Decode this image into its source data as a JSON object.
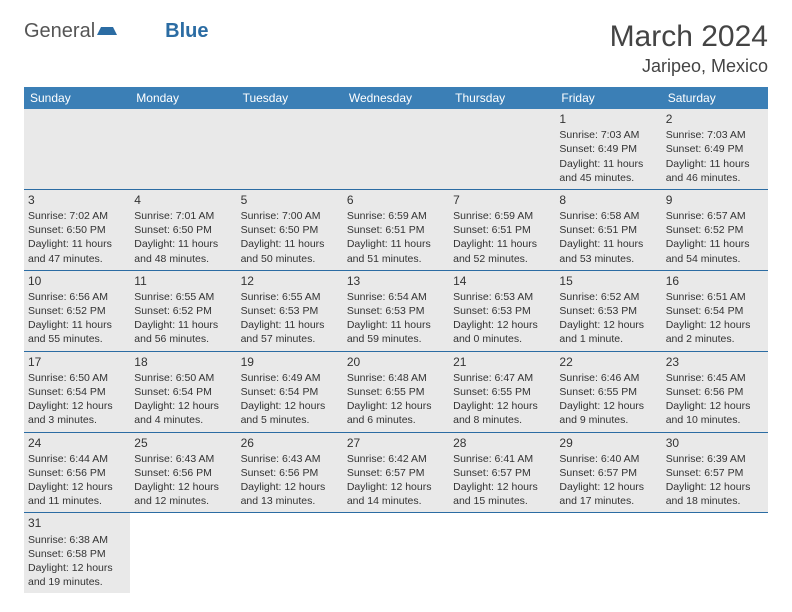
{
  "brand": {
    "part1": "General",
    "part2": "Blue"
  },
  "title": "March 2024",
  "location": "Jaripeo, Mexico",
  "colors": {
    "header_bg": "#3b7fb6",
    "header_text": "#ffffff",
    "cell_bg": "#e9e9e9",
    "rule": "#2b6ca3",
    "brand_blue": "#2b6ca3"
  },
  "weekdays": [
    "Sunday",
    "Monday",
    "Tuesday",
    "Wednesday",
    "Thursday",
    "Friday",
    "Saturday"
  ],
  "weeks": [
    [
      null,
      null,
      null,
      null,
      null,
      {
        "d": "1",
        "sr": "Sunrise: 7:03 AM",
        "ss": "Sunset: 6:49 PM",
        "dl": "Daylight: 11 hours and 45 minutes."
      },
      {
        "d": "2",
        "sr": "Sunrise: 7:03 AM",
        "ss": "Sunset: 6:49 PM",
        "dl": "Daylight: 11 hours and 46 minutes."
      }
    ],
    [
      {
        "d": "3",
        "sr": "Sunrise: 7:02 AM",
        "ss": "Sunset: 6:50 PM",
        "dl": "Daylight: 11 hours and 47 minutes."
      },
      {
        "d": "4",
        "sr": "Sunrise: 7:01 AM",
        "ss": "Sunset: 6:50 PM",
        "dl": "Daylight: 11 hours and 48 minutes."
      },
      {
        "d": "5",
        "sr": "Sunrise: 7:00 AM",
        "ss": "Sunset: 6:50 PM",
        "dl": "Daylight: 11 hours and 50 minutes."
      },
      {
        "d": "6",
        "sr": "Sunrise: 6:59 AM",
        "ss": "Sunset: 6:51 PM",
        "dl": "Daylight: 11 hours and 51 minutes."
      },
      {
        "d": "7",
        "sr": "Sunrise: 6:59 AM",
        "ss": "Sunset: 6:51 PM",
        "dl": "Daylight: 11 hours and 52 minutes."
      },
      {
        "d": "8",
        "sr": "Sunrise: 6:58 AM",
        "ss": "Sunset: 6:51 PM",
        "dl": "Daylight: 11 hours and 53 minutes."
      },
      {
        "d": "9",
        "sr": "Sunrise: 6:57 AM",
        "ss": "Sunset: 6:52 PM",
        "dl": "Daylight: 11 hours and 54 minutes."
      }
    ],
    [
      {
        "d": "10",
        "sr": "Sunrise: 6:56 AM",
        "ss": "Sunset: 6:52 PM",
        "dl": "Daylight: 11 hours and 55 minutes."
      },
      {
        "d": "11",
        "sr": "Sunrise: 6:55 AM",
        "ss": "Sunset: 6:52 PM",
        "dl": "Daylight: 11 hours and 56 minutes."
      },
      {
        "d": "12",
        "sr": "Sunrise: 6:55 AM",
        "ss": "Sunset: 6:53 PM",
        "dl": "Daylight: 11 hours and 57 minutes."
      },
      {
        "d": "13",
        "sr": "Sunrise: 6:54 AM",
        "ss": "Sunset: 6:53 PM",
        "dl": "Daylight: 11 hours and 59 minutes."
      },
      {
        "d": "14",
        "sr": "Sunrise: 6:53 AM",
        "ss": "Sunset: 6:53 PM",
        "dl": "Daylight: 12 hours and 0 minutes."
      },
      {
        "d": "15",
        "sr": "Sunrise: 6:52 AM",
        "ss": "Sunset: 6:53 PM",
        "dl": "Daylight: 12 hours and 1 minute."
      },
      {
        "d": "16",
        "sr": "Sunrise: 6:51 AM",
        "ss": "Sunset: 6:54 PM",
        "dl": "Daylight: 12 hours and 2 minutes."
      }
    ],
    [
      {
        "d": "17",
        "sr": "Sunrise: 6:50 AM",
        "ss": "Sunset: 6:54 PM",
        "dl": "Daylight: 12 hours and 3 minutes."
      },
      {
        "d": "18",
        "sr": "Sunrise: 6:50 AM",
        "ss": "Sunset: 6:54 PM",
        "dl": "Daylight: 12 hours and 4 minutes."
      },
      {
        "d": "19",
        "sr": "Sunrise: 6:49 AM",
        "ss": "Sunset: 6:54 PM",
        "dl": "Daylight: 12 hours and 5 minutes."
      },
      {
        "d": "20",
        "sr": "Sunrise: 6:48 AM",
        "ss": "Sunset: 6:55 PM",
        "dl": "Daylight: 12 hours and 6 minutes."
      },
      {
        "d": "21",
        "sr": "Sunrise: 6:47 AM",
        "ss": "Sunset: 6:55 PM",
        "dl": "Daylight: 12 hours and 8 minutes."
      },
      {
        "d": "22",
        "sr": "Sunrise: 6:46 AM",
        "ss": "Sunset: 6:55 PM",
        "dl": "Daylight: 12 hours and 9 minutes."
      },
      {
        "d": "23",
        "sr": "Sunrise: 6:45 AM",
        "ss": "Sunset: 6:56 PM",
        "dl": "Daylight: 12 hours and 10 minutes."
      }
    ],
    [
      {
        "d": "24",
        "sr": "Sunrise: 6:44 AM",
        "ss": "Sunset: 6:56 PM",
        "dl": "Daylight: 12 hours and 11 minutes."
      },
      {
        "d": "25",
        "sr": "Sunrise: 6:43 AM",
        "ss": "Sunset: 6:56 PM",
        "dl": "Daylight: 12 hours and 12 minutes."
      },
      {
        "d": "26",
        "sr": "Sunrise: 6:43 AM",
        "ss": "Sunset: 6:56 PM",
        "dl": "Daylight: 12 hours and 13 minutes."
      },
      {
        "d": "27",
        "sr": "Sunrise: 6:42 AM",
        "ss": "Sunset: 6:57 PM",
        "dl": "Daylight: 12 hours and 14 minutes."
      },
      {
        "d": "28",
        "sr": "Sunrise: 6:41 AM",
        "ss": "Sunset: 6:57 PM",
        "dl": "Daylight: 12 hours and 15 minutes."
      },
      {
        "d": "29",
        "sr": "Sunrise: 6:40 AM",
        "ss": "Sunset: 6:57 PM",
        "dl": "Daylight: 12 hours and 17 minutes."
      },
      {
        "d": "30",
        "sr": "Sunrise: 6:39 AM",
        "ss": "Sunset: 6:57 PM",
        "dl": "Daylight: 12 hours and 18 minutes."
      }
    ],
    [
      {
        "d": "31",
        "sr": "Sunrise: 6:38 AM",
        "ss": "Sunset: 6:58 PM",
        "dl": "Daylight: 12 hours and 19 minutes."
      },
      null,
      null,
      null,
      null,
      null,
      null
    ]
  ]
}
